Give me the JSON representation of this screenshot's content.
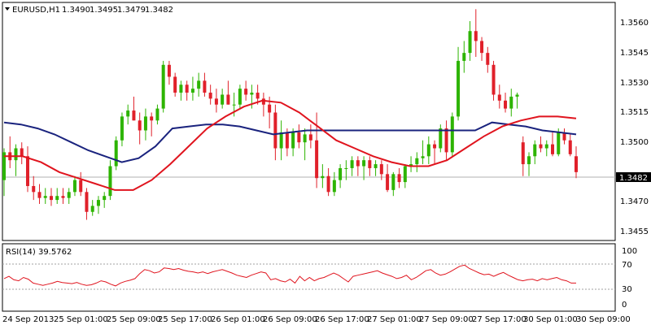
{
  "chart_data": {
    "type": "candlestick",
    "symbol_label": "EURUSD,H1",
    "header_ohlc": [
      "1.3490",
      "1.3495",
      "1.3479",
      "1.3482"
    ],
    "price_ylim": [
      1.3448,
      1.3567
    ],
    "price_ticks": [
      "1.3560",
      "1.3545",
      "1.3530",
      "1.3515",
      "1.3500",
      "1.3470",
      "1.3455"
    ],
    "current_price_label": "1.3482",
    "current_price": 1.3482,
    "x_labels": [
      "24 Sep 2013",
      "25 Sep 01:00",
      "25 Sep 09:00",
      "25 Sep 17:00",
      "26 Sep 01:00",
      "26 Sep 09:00",
      "26 Sep 17:00",
      "27 Sep 01:00",
      "27 Sep 09:00",
      "27 Sep 17:00",
      "30 Sep 01:00",
      "30 Sep 09:00"
    ],
    "candles": [
      [
        1.3478,
        1.3494,
        1.347,
        1.3492
      ],
      [
        1.3492,
        1.35,
        1.3484,
        1.3488
      ],
      [
        1.3488,
        1.3496,
        1.348,
        1.3494
      ],
      [
        1.3494,
        1.3497,
        1.3486,
        1.349
      ],
      [
        1.349,
        1.3495,
        1.3472,
        1.3475
      ],
      [
        1.3475,
        1.348,
        1.3468,
        1.3472
      ],
      [
        1.3472,
        1.3476,
        1.3466,
        1.3469
      ],
      [
        1.3469,
        1.3474,
        1.3466,
        1.347
      ],
      [
        1.347,
        1.3474,
        1.3465,
        1.3468
      ],
      [
        1.3468,
        1.3474,
        1.3466,
        1.347
      ],
      [
        1.347,
        1.3474,
        1.3466,
        1.3469
      ],
      [
        1.3469,
        1.3474,
        1.3466,
        1.3472
      ],
      [
        1.3472,
        1.348,
        1.347,
        1.3478
      ],
      [
        1.3478,
        1.3482,
        1.347,
        1.3472
      ],
      [
        1.3472,
        1.3474,
        1.3458,
        1.3462
      ],
      [
        1.3462,
        1.3468,
        1.346,
        1.3465
      ],
      [
        1.3465,
        1.347,
        1.3461,
        1.3468
      ],
      [
        1.3468,
        1.3472,
        1.3464,
        1.347
      ],
      [
        1.347,
        1.3488,
        1.3468,
        1.3485
      ],
      [
        1.3485,
        1.35,
        1.3483,
        1.3498
      ],
      [
        1.3498,
        1.3512,
        1.3495,
        1.351
      ],
      [
        1.351,
        1.3516,
        1.3506,
        1.3513
      ],
      [
        1.3513,
        1.352,
        1.3508,
        1.3508
      ],
      [
        1.3508,
        1.3512,
        1.3496,
        1.3503
      ],
      [
        1.3503,
        1.3514,
        1.3498,
        1.351
      ],
      [
        1.351,
        1.3512,
        1.35,
        1.3508
      ],
      [
        1.3508,
        1.3516,
        1.3506,
        1.3514
      ],
      [
        1.3514,
        1.3538,
        1.3512,
        1.3536
      ],
      [
        1.3536,
        1.3538,
        1.3526,
        1.353
      ],
      [
        1.353,
        1.3532,
        1.352,
        1.3522
      ],
      [
        1.3522,
        1.3528,
        1.3518,
        1.3526
      ],
      [
        1.3526,
        1.3528,
        1.3518,
        1.3522
      ],
      [
        1.3522,
        1.353,
        1.3518,
        1.3524
      ],
      [
        1.3524,
        1.3532,
        1.352,
        1.3528
      ],
      [
        1.3528,
        1.3532,
        1.352,
        1.3522
      ],
      [
        1.3522,
        1.3526,
        1.3516,
        1.3519
      ],
      [
        1.3519,
        1.3524,
        1.3512,
        1.3516
      ],
      [
        1.3516,
        1.3524,
        1.3514,
        1.3521
      ],
      [
        1.3521,
        1.3528,
        1.3516,
        1.3516
      ],
      [
        1.3516,
        1.3522,
        1.351,
        1.3516
      ],
      [
        1.3516,
        1.3526,
        1.3514,
        1.3524
      ],
      [
        1.3524,
        1.3528,
        1.3518,
        1.3521
      ],
      [
        1.3521,
        1.3526,
        1.3514,
        1.3522
      ],
      [
        1.3522,
        1.3526,
        1.3516,
        1.3519
      ],
      [
        1.3519,
        1.3522,
        1.351,
        1.3516
      ],
      [
        1.3516,
        1.352,
        1.3504,
        1.3512
      ],
      [
        1.3512,
        1.3516,
        1.3488,
        1.3494
      ],
      [
        1.3494,
        1.3508,
        1.3488,
        1.3502
      ],
      [
        1.3502,
        1.3504,
        1.349,
        1.3494
      ],
      [
        1.3494,
        1.3504,
        1.349,
        1.3502
      ],
      [
        1.3502,
        1.3506,
        1.3494,
        1.3497
      ],
      [
        1.3497,
        1.3504,
        1.3488,
        1.3501
      ],
      [
        1.3501,
        1.3506,
        1.3494,
        1.3498
      ],
      [
        1.3498,
        1.3512,
        1.3474,
        1.3479
      ],
      [
        1.3479,
        1.3486,
        1.3474,
        1.348
      ],
      [
        1.348,
        1.3484,
        1.347,
        1.3472
      ],
      [
        1.3472,
        1.3482,
        1.347,
        1.3478
      ],
      [
        1.3478,
        1.3486,
        1.3474,
        1.3484
      ],
      [
        1.3484,
        1.3488,
        1.3478,
        1.3484
      ],
      [
        1.3484,
        1.349,
        1.348,
        1.3488
      ],
      [
        1.3488,
        1.349,
        1.348,
        1.3485
      ],
      [
        1.3485,
        1.349,
        1.3478,
        1.3488
      ],
      [
        1.3488,
        1.349,
        1.348,
        1.3484
      ],
      [
        1.3484,
        1.3488,
        1.348,
        1.3486
      ],
      [
        1.3486,
        1.3488,
        1.3478,
        1.3481
      ],
      [
        1.3481,
        1.3486,
        1.3472,
        1.3473
      ],
      [
        1.3473,
        1.3482,
        1.347,
        1.3481
      ],
      [
        1.3481,
        1.3484,
        1.3474,
        1.3477
      ],
      [
        1.3477,
        1.3486,
        1.3474,
        1.3485
      ],
      [
        1.3485,
        1.349,
        1.3482,
        1.3486
      ],
      [
        1.3486,
        1.3492,
        1.3482,
        1.3489
      ],
      [
        1.3489,
        1.3498,
        1.3486,
        1.349
      ],
      [
        1.349,
        1.35,
        1.3486,
        1.3496
      ],
      [
        1.3496,
        1.3498,
        1.3486,
        1.3494
      ],
      [
        1.3494,
        1.3506,
        1.3492,
        1.3504
      ],
      [
        1.3504,
        1.3508,
        1.3488,
        1.3492
      ],
      [
        1.3492,
        1.3512,
        1.349,
        1.351
      ],
      [
        1.351,
        1.3545,
        1.3508,
        1.3538
      ],
      [
        1.3538,
        1.3548,
        1.3532,
        1.3542
      ],
      [
        1.3542,
        1.3558,
        1.3538,
        1.3553
      ],
      [
        1.3553,
        1.3564,
        1.354,
        1.3548
      ],
      [
        1.3548,
        1.355,
        1.3538,
        1.3542
      ],
      [
        1.3542,
        1.3545,
        1.3532,
        1.3536
      ],
      [
        1.3536,
        1.3538,
        1.3518,
        1.3521
      ],
      [
        1.3521,
        1.3526,
        1.3514,
        1.3518
      ],
      [
        1.3518,
        1.3522,
        1.3512,
        1.3514
      ],
      [
        1.3514,
        1.3524,
        1.351,
        1.352
      ],
      [
        1.352,
        1.3522,
        1.3514,
        1.3521
      ],
      [
        1.3497,
        1.35,
        1.348,
        1.3486
      ],
      [
        1.3486,
        1.3492,
        1.348,
        1.349
      ],
      [
        1.349,
        1.3498,
        1.3486,
        1.3496
      ],
      [
        1.3496,
        1.35,
        1.3492,
        1.3494
      ],
      [
        1.3494,
        1.3498,
        1.349,
        1.3496
      ],
      [
        1.3496,
        1.3502,
        1.349,
        1.3491
      ],
      [
        1.3491,
        1.3504,
        1.349,
        1.3502
      ],
      [
        1.3502,
        1.3504,
        1.3496,
        1.3498
      ],
      [
        1.3498,
        1.3501,
        1.349,
        1.3491
      ],
      [
        1.349,
        1.3495,
        1.3479,
        1.3482
      ]
    ],
    "candle_x_start": 0,
    "candle_x_end": 100,
    "series": [
      {
        "values": [
          1.3507,
          1.3506,
          1.3504,
          1.3501,
          1.3497,
          1.3493,
          1.349,
          1.3487,
          1.3489,
          1.3495,
          1.3504,
          1.3505,
          1.3506,
          1.3506,
          1.3505,
          1.3503,
          1.3501,
          1.3502,
          1.3503,
          1.3503,
          1.3503,
          1.3503,
          1.3503,
          1.3503,
          1.3503,
          1.3503,
          1.3503,
          1.3503,
          1.3503,
          1.3507,
          1.3506,
          1.3505,
          1.3503,
          1.3502,
          1.3501
        ]
      },
      {
        "values": [
          1.349,
          1.349,
          1.3487,
          1.3482,
          1.3479,
          1.3476,
          1.3473,
          1.3473,
          1.3478,
          1.3486,
          1.3495,
          1.3504,
          1.351,
          1.3515,
          1.3518,
          1.3517,
          1.3512,
          1.3505,
          1.3498,
          1.3494,
          1.349,
          1.3487,
          1.3485,
          1.3485,
          1.3488,
          1.3494,
          1.35,
          1.3505,
          1.3508,
          1.351,
          1.351,
          1.3509
        ]
      }
    ],
    "colors": {
      "bull": "#2db400",
      "bear": "#e0202a",
      "ma_blue": "#1a237e",
      "ma_red": "#e0141e",
      "rsi": "#e0141e"
    },
    "rsi_label": "RSI(14) 39.5762",
    "rsi_ylim": [
      0,
      100
    ],
    "rsi_ticks": [
      "100",
      "70",
      "30",
      "0"
    ],
    "rsi_levels": [
      70,
      30
    ],
    "rsi_values": [
      48,
      52,
      46,
      44,
      50,
      47,
      40,
      38,
      36,
      38,
      40,
      43,
      41,
      40,
      39,
      41,
      38,
      36,
      37,
      40,
      44,
      42,
      38,
      35,
      40,
      43,
      45,
      48,
      57,
      64,
      62,
      58,
      60,
      67,
      66,
      64,
      66,
      63,
      61,
      60,
      58,
      60,
      57,
      60,
      62,
      64,
      61,
      58,
      54,
      52,
      50,
      54,
      57,
      60,
      58,
      46,
      48,
      44,
      42,
      47,
      40,
      52,
      44,
      50,
      44,
      48,
      50,
      54,
      58,
      54,
      48,
      42,
      52,
      54,
      56,
      58,
      60,
      62,
      58,
      55,
      52,
      48,
      50,
      54,
      46,
      50,
      56,
      62,
      64,
      58,
      54,
      56,
      60,
      65,
      70,
      72,
      66,
      62,
      58,
      55,
      56,
      52,
      56,
      59,
      54,
      50,
      46,
      44,
      46,
      47,
      44,
      48,
      46,
      48,
      50,
      46,
      44,
      40,
      40
    ]
  }
}
